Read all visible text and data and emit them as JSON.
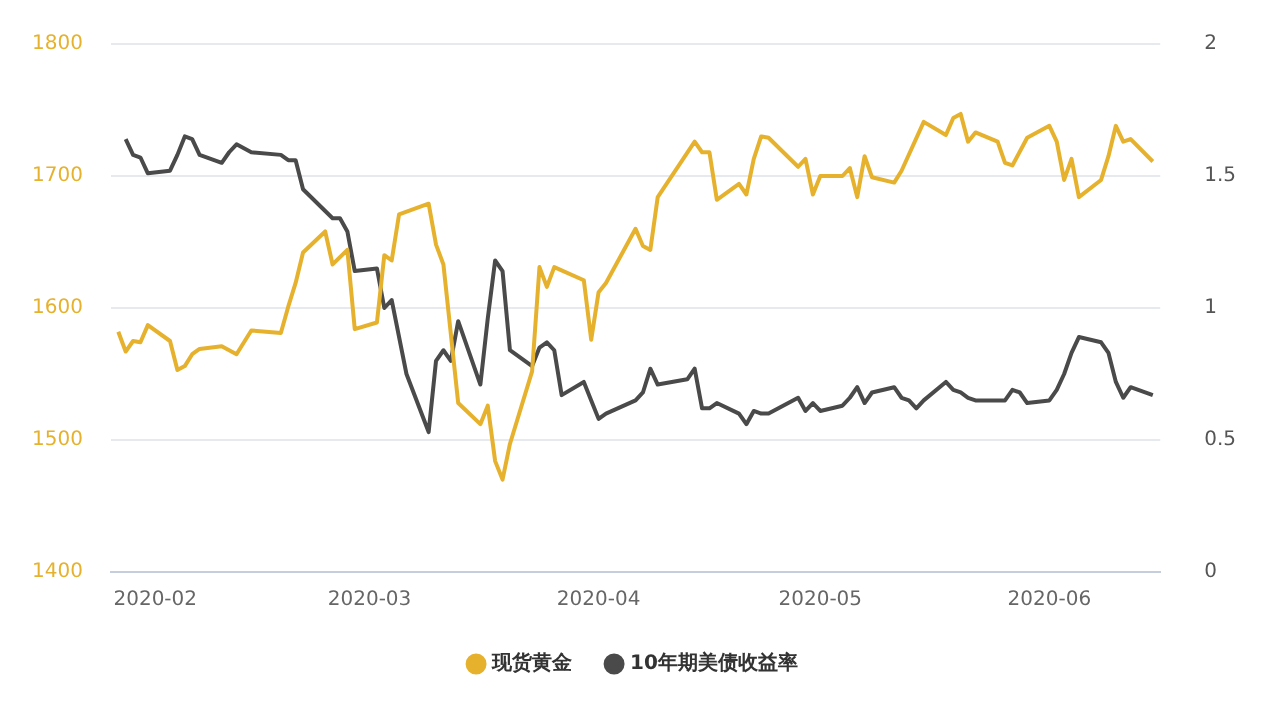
{
  "chart_data": {
    "type": "line",
    "xlim": [
      "2020-01-26",
      "2020-06-16"
    ],
    "xticks": [
      {
        "value": "2020-02-01",
        "label": "2020-02"
      },
      {
        "value": "2020-03-01",
        "label": "2020-03"
      },
      {
        "value": "2020-04-01",
        "label": "2020-04"
      },
      {
        "value": "2020-05-01",
        "label": "2020-05"
      },
      {
        "value": "2020-06-01",
        "label": "2020-06"
      }
    ],
    "ylim": [
      1400,
      1800
    ],
    "yticks": [
      1400,
      1500,
      1600,
      1700,
      1800
    ],
    "y2lim": [
      0,
      2
    ],
    "y2ticks": [
      0,
      0.5,
      1,
      1.5,
      2
    ],
    "grid": "y",
    "legend": "bottom",
    "marker": "none",
    "series": [
      {
        "name": "现货黄金",
        "color": "#e6b12d",
        "x": [
          "2020-01-27",
          "2020-01-28",
          "2020-01-29",
          "2020-01-30",
          "2020-01-31",
          "2020-02-03",
          "2020-02-04",
          "2020-02-05",
          "2020-02-06",
          "2020-02-07",
          "2020-02-10",
          "2020-02-11",
          "2020-02-12",
          "2020-02-14",
          "2020-02-18",
          "2020-02-19",
          "2020-02-20",
          "2020-02-21",
          "2020-02-24",
          "2020-02-25",
          "2020-02-27",
          "2020-02-28",
          "2020-03-02",
          "2020-03-03",
          "2020-03-04",
          "2020-03-05",
          "2020-03-09",
          "2020-03-10",
          "2020-03-11",
          "2020-03-13",
          "2020-03-16",
          "2020-03-17",
          "2020-03-18",
          "2020-03-19",
          "2020-03-20",
          "2020-03-23",
          "2020-03-24",
          "2020-03-25",
          "2020-03-26",
          "2020-03-30",
          "2020-03-31",
          "2020-04-01",
          "2020-04-02",
          "2020-04-06",
          "2020-04-07",
          "2020-04-08",
          "2020-04-09",
          "2020-04-14",
          "2020-04-15",
          "2020-04-16",
          "2020-04-17",
          "2020-04-20",
          "2020-04-21",
          "2020-04-22",
          "2020-04-23",
          "2020-04-24",
          "2020-04-28",
          "2020-04-29",
          "2020-04-30",
          "2020-05-01",
          "2020-05-04",
          "2020-05-05",
          "2020-05-06",
          "2020-05-07",
          "2020-05-08",
          "2020-05-11",
          "2020-05-12",
          "2020-05-15",
          "2020-05-18",
          "2020-05-19",
          "2020-05-20",
          "2020-05-21",
          "2020-05-22",
          "2020-05-25",
          "2020-05-26",
          "2020-05-27",
          "2020-05-29",
          "2020-06-01",
          "2020-06-02",
          "2020-06-03",
          "2020-06-04",
          "2020-06-05",
          "2020-06-08",
          "2020-06-09",
          "2020-06-10",
          "2020-06-11",
          "2020-06-12",
          "2020-06-15"
        ],
        "values": [
          1582,
          1567,
          1575,
          1574,
          1587,
          1575,
          1553,
          1556,
          1565,
          1569,
          1571,
          1568,
          1565,
          1583,
          1581,
          1601,
          1619,
          1642,
          1658,
          1633,
          1644,
          1584,
          1589,
          1640,
          1636,
          1671,
          1679,
          1648,
          1633,
          1528,
          1512,
          1526,
          1484,
          1470,
          1497,
          1552,
          1631,
          1616,
          1631,
          1621,
          1576,
          1612,
          1619,
          1660,
          1647,
          1644,
          1684,
          1726,
          1718,
          1718,
          1682,
          1694,
          1686,
          1713,
          1730,
          1729,
          1707,
          1713,
          1686,
          1700,
          1700,
          1706,
          1684,
          1715,
          1699,
          1695,
          1704,
          1741,
          1731,
          1744,
          1747,
          1726,
          1733,
          1726,
          1710,
          1708,
          1729,
          1738,
          1726,
          1697,
          1713,
          1684,
          1697,
          1715,
          1738,
          1726,
          1728,
          1711
        ]
      },
      {
        "name": "10年期美债收益率",
        "color": "#4a4a4a",
        "axis": "y2",
        "x": [
          "2020-01-28",
          "2020-01-29",
          "2020-01-30",
          "2020-01-31",
          "2020-02-03",
          "2020-02-04",
          "2020-02-05",
          "2020-02-06",
          "2020-02-07",
          "2020-02-10",
          "2020-02-11",
          "2020-02-12",
          "2020-02-14",
          "2020-02-18",
          "2020-02-19",
          "2020-02-20",
          "2020-02-21",
          "2020-02-25",
          "2020-02-26",
          "2020-02-27",
          "2020-02-28",
          "2020-03-02",
          "2020-03-03",
          "2020-03-04",
          "2020-03-06",
          "2020-03-09",
          "2020-03-10",
          "2020-03-11",
          "2020-03-12",
          "2020-03-13",
          "2020-03-16",
          "2020-03-17",
          "2020-03-18",
          "2020-03-19",
          "2020-03-20",
          "2020-03-23",
          "2020-03-24",
          "2020-03-25",
          "2020-03-26",
          "2020-03-27",
          "2020-03-30",
          "2020-03-31",
          "2020-04-01",
          "2020-04-02",
          "2020-04-06",
          "2020-04-07",
          "2020-04-08",
          "2020-04-09",
          "2020-04-13",
          "2020-04-14",
          "2020-04-15",
          "2020-04-16",
          "2020-04-17",
          "2020-04-20",
          "2020-04-21",
          "2020-04-22",
          "2020-04-23",
          "2020-04-24",
          "2020-04-28",
          "2020-04-29",
          "2020-04-30",
          "2020-05-01",
          "2020-05-04",
          "2020-05-05",
          "2020-05-06",
          "2020-05-07",
          "2020-05-08",
          "2020-05-11",
          "2020-05-12",
          "2020-05-13",
          "2020-05-14",
          "2020-05-15",
          "2020-05-18",
          "2020-05-19",
          "2020-05-20",
          "2020-05-21",
          "2020-05-22",
          "2020-05-26",
          "2020-05-27",
          "2020-05-28",
          "2020-05-29",
          "2020-06-01",
          "2020-06-02",
          "2020-06-03",
          "2020-06-04",
          "2020-06-05",
          "2020-06-08",
          "2020-06-09",
          "2020-06-10",
          "2020-06-11",
          "2020-06-12",
          "2020-06-15"
        ],
        "values": [
          1.64,
          1.58,
          1.57,
          1.51,
          1.52,
          1.58,
          1.65,
          1.64,
          1.58,
          1.55,
          1.59,
          1.62,
          1.59,
          1.58,
          1.56,
          1.56,
          1.45,
          1.34,
          1.34,
          1.29,
          1.14,
          1.15,
          1.0,
          1.03,
          0.75,
          0.53,
          0.8,
          0.84,
          0.8,
          0.95,
          0.71,
          0.96,
          1.18,
          1.14,
          0.84,
          0.78,
          0.85,
          0.87,
          0.84,
          0.67,
          0.72,
          0.65,
          0.58,
          0.6,
          0.65,
          0.68,
          0.77,
          0.71,
          0.73,
          0.77,
          0.62,
          0.62,
          0.64,
          0.6,
          0.56,
          0.61,
          0.6,
          0.6,
          0.66,
          0.61,
          0.64,
          0.61,
          0.63,
          0.66,
          0.7,
          0.64,
          0.68,
          0.7,
          0.66,
          0.65,
          0.62,
          0.65,
          0.72,
          0.69,
          0.68,
          0.66,
          0.65,
          0.65,
          0.69,
          0.68,
          0.64,
          0.65,
          0.69,
          0.75,
          0.83,
          0.89,
          0.87,
          0.83,
          0.72,
          0.66,
          0.7,
          0.67
        ]
      }
    ]
  }
}
